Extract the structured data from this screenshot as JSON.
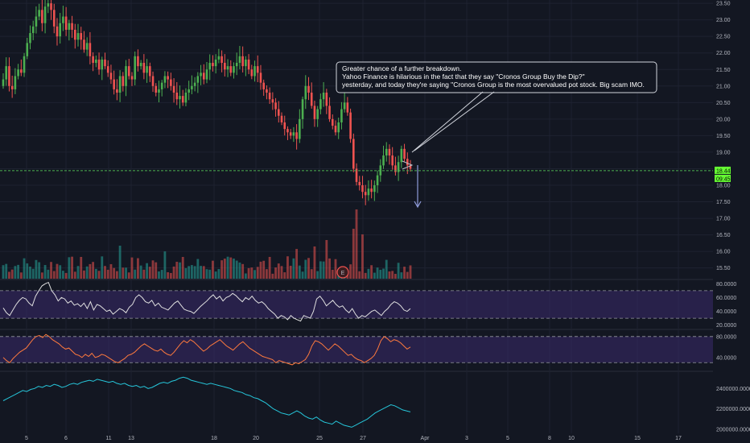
{
  "colors": {
    "background": "#131722",
    "grid": "#1e2230",
    "up": "#26a69a",
    "up_candle": "#4caf50",
    "down": "#ef5350",
    "price_line": "#4caf50",
    "rsi_band": "#3b2a6b",
    "rsi_line": "#e0e0e0",
    "stoch_line": "#ff7a3d",
    "obv_line": "#26c6da",
    "callout_border": "#d1d4dc",
    "arrow": "#8f9bd9"
  },
  "chart_data": [
    {
      "type": "candlestick",
      "panel": "price",
      "y_ticks": [
        "23.50",
        "23.00",
        "22.50",
        "22.00",
        "21.50",
        "21.00",
        "20.50",
        "20.00",
        "19.50",
        "19.00",
        "18.50",
        "18.00",
        "17.50",
        "17.00",
        "16.50",
        "16.00",
        "15.50"
      ],
      "ylim": [
        15.2,
        23.6
      ],
      "current_price": "18.44",
      "time_label": "09:45",
      "ohlc_close": [
        21.2,
        21.6,
        21.0,
        20.9,
        21.3,
        21.5,
        21.4,
        21.9,
        22.3,
        22.6,
        22.8,
        23.1,
        23.3,
        22.9,
        23.4,
        23.5,
        23.3,
        22.8,
        22.5,
        22.9,
        23.1,
        22.7,
        22.9,
        22.7,
        22.4,
        22.6,
        22.4,
        22.1,
        22.3,
        21.9,
        21.7,
        21.8,
        21.5,
        21.8,
        21.6,
        21.4,
        21.2,
        20.9,
        20.8,
        21.3,
        21.0,
        21.6,
        21.3,
        21.2,
        21.9,
        21.6,
        21.7,
        21.4,
        21.6,
        21.3,
        21.0,
        20.8,
        20.9,
        21.1,
        21.3,
        21.2,
        21.0,
        20.8,
        20.6,
        20.7,
        20.5,
        20.8,
        20.9,
        21.0,
        21.1,
        21.3,
        21.4,
        21.2,
        21.5,
        21.7,
        21.6,
        21.8,
        21.9,
        21.7,
        21.5,
        21.6,
        21.4,
        21.6,
        21.7,
        21.9,
        21.6,
        21.8,
        21.5,
        21.3,
        21.6,
        21.4,
        21.1,
        20.9,
        20.8,
        20.6,
        20.5,
        20.3,
        20.1,
        19.9,
        19.7,
        19.6,
        19.5,
        19.6,
        19.4,
        20.0,
        20.6,
        21.0,
        20.8,
        20.4,
        20.0,
        20.3,
        20.6,
        20.8,
        20.4,
        20.0,
        19.8,
        19.6,
        19.9,
        20.3,
        20.5,
        20.2,
        19.4,
        18.5,
        18.1,
        18.0,
        17.8,
        17.7,
        17.9,
        17.8,
        18.0,
        18.3,
        18.6,
        18.9,
        19.1,
        18.9,
        18.6,
        18.4,
        18.7,
        19.1,
        18.8,
        18.6,
        18.5
      ],
      "x_ticks": [
        "5",
        "6",
        "11",
        "13",
        "18",
        "20",
        "25",
        "27",
        "Apr",
        "3",
        "5",
        "8",
        "10",
        "15",
        "17"
      ],
      "annotation": [
        "Greater chance of a further breakdown.",
        "Yahoo Finance is hilarious in the fact that they say \"Cronos Group Buy the Dip?\"",
        "yesterday, and today they're saying \"Cronos Group is the most overvalued pot stock. Big scam IMO."
      ],
      "earnings_marker": "E"
    },
    {
      "type": "line",
      "panel": "rsi",
      "y_ticks": [
        "80.0000",
        "60.0000",
        "40.0000",
        "20.0000"
      ],
      "ylim": [
        15,
        85
      ],
      "band": [
        30,
        70
      ],
      "values": [
        45,
        38,
        34,
        42,
        50,
        56,
        60,
        58,
        52,
        48,
        62,
        70,
        77,
        80,
        82,
        70,
        64,
        55,
        60,
        58,
        52,
        55,
        49,
        51,
        47,
        52,
        44,
        54,
        42,
        50,
        48,
        44,
        40,
        42,
        36,
        40,
        44,
        42,
        38,
        46,
        50,
        60,
        64,
        60,
        54,
        52,
        56,
        48,
        52,
        46,
        44,
        42,
        47,
        52,
        55,
        49,
        43,
        41,
        40,
        37,
        42,
        47,
        51,
        55,
        60,
        64,
        58,
        62,
        55,
        60,
        62,
        66,
        63,
        58,
        54,
        60,
        57,
        62,
        56,
        52,
        54,
        50,
        44,
        40,
        36,
        30,
        34,
        32,
        28,
        34,
        30,
        28,
        26,
        34,
        32,
        30,
        40,
        58,
        62,
        56,
        48,
        52,
        56,
        50,
        46,
        48,
        42,
        38,
        44,
        36,
        30,
        34,
        32,
        36,
        40,
        42,
        38,
        34,
        40,
        44,
        50,
        54,
        52,
        48,
        42,
        40,
        44
      ],
      "legend": ""
    },
    {
      "type": "line",
      "panel": "stochastic",
      "y_ticks": [
        "80.0000",
        "40.0000"
      ],
      "ylim": [
        15,
        92
      ],
      "band": [
        30,
        80
      ],
      "values": [
        40,
        34,
        30,
        38,
        44,
        50,
        54,
        58,
        66,
        74,
        80,
        82,
        78,
        84,
        80,
        74,
        70,
        66,
        60,
        56,
        58,
        52,
        46,
        44,
        40,
        46,
        42,
        48,
        40,
        42,
        46,
        44,
        40,
        36,
        32,
        30,
        34,
        38,
        44,
        46,
        50,
        56,
        62,
        66,
        62,
        58,
        54,
        52,
        56,
        50,
        46,
        44,
        50,
        58,
        66,
        72,
        68,
        74,
        70,
        64,
        58,
        52,
        56,
        62,
        66,
        70,
        74,
        68,
        62,
        58,
        54,
        60,
        66,
        70,
        64,
        58,
        54,
        50,
        46,
        42,
        40,
        38,
        36,
        30,
        34,
        32,
        30,
        28,
        26,
        30,
        28,
        32,
        36,
        46,
        62,
        72,
        70,
        66,
        60,
        54,
        60,
        66,
        62,
        56,
        50,
        44,
        46,
        40,
        36,
        34,
        30,
        34,
        38,
        44,
        56,
        72,
        80,
        76,
        70,
        74,
        72,
        68,
        62,
        56,
        60
      ],
      "legend": ""
    },
    {
      "type": "line",
      "panel": "obv",
      "y_ticks": [
        "2400000.0000",
        "2200000.0000",
        "2000000.0000"
      ],
      "ylim": [
        1960000,
        2560000
      ],
      "values": [
        2280000,
        2300000,
        2320000,
        2340000,
        2360000,
        2380000,
        2370000,
        2390000,
        2400000,
        2420000,
        2410000,
        2430000,
        2420000,
        2440000,
        2430000,
        2410000,
        2420000,
        2440000,
        2450000,
        2440000,
        2460000,
        2470000,
        2480000,
        2470000,
        2490000,
        2480000,
        2470000,
        2460000,
        2470000,
        2450000,
        2440000,
        2450000,
        2430000,
        2420000,
        2430000,
        2410000,
        2420000,
        2400000,
        2410000,
        2430000,
        2450000,
        2460000,
        2450000,
        2470000,
        2480000,
        2500000,
        2510000,
        2500000,
        2480000,
        2470000,
        2460000,
        2450000,
        2440000,
        2450000,
        2440000,
        2430000,
        2420000,
        2410000,
        2400000,
        2380000,
        2370000,
        2360000,
        2340000,
        2330000,
        2310000,
        2300000,
        2280000,
        2260000,
        2230000,
        2200000,
        2180000,
        2160000,
        2150000,
        2140000,
        2160000,
        2180000,
        2160000,
        2130000,
        2110000,
        2100000,
        2120000,
        2090000,
        2070000,
        2060000,
        2050000,
        2080000,
        2060000,
        2040000,
        2030000,
        2020000,
        2040000,
        2060000,
        2080000,
        2100000,
        2130000,
        2160000,
        2180000,
        2200000,
        2220000,
        2240000,
        2230000,
        2210000,
        2190000,
        2180000,
        2170000
      ],
      "legend": ""
    }
  ]
}
